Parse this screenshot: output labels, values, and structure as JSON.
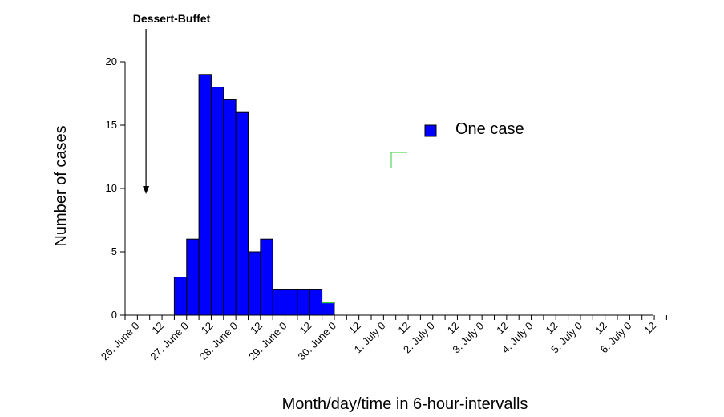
{
  "chart_data": {
    "type": "bar",
    "title": "",
    "xlabel": "Month/day/time in 6-hour-intervalls",
    "ylabel": "Number of cases",
    "ylim": [
      0,
      20
    ],
    "yticks": [
      0,
      5,
      10,
      15,
      20
    ],
    "grid": false,
    "legend": {
      "label": "One case",
      "position": "top-right"
    },
    "annotation": {
      "text": "Dessert-Buffet",
      "at_interval": 1.7
    },
    "bar_color": "#0000ff",
    "highlight_color": "#33cc33",
    "x_tick_labels": [
      "26. June 0",
      "12",
      "27. June 0",
      "12",
      "28. June 0",
      "12",
      "29. June 0",
      "12",
      "30. June 0",
      "12",
      "1. July 0",
      "12",
      "2. July 0",
      "12",
      "3. July 0",
      "12",
      "4. July 0",
      "12",
      "5. July 0",
      "12",
      "6. July 0",
      "12"
    ],
    "bars": [
      {
        "interval": 4,
        "value": 3
      },
      {
        "interval": 5,
        "value": 6
      },
      {
        "interval": 6,
        "value": 19
      },
      {
        "interval": 7,
        "value": 18
      },
      {
        "interval": 8,
        "value": 17
      },
      {
        "interval": 9,
        "value": 16
      },
      {
        "interval": 10,
        "value": 5
      },
      {
        "interval": 11,
        "value": 6
      },
      {
        "interval": 12,
        "value": 2
      },
      {
        "interval": 13,
        "value": 2
      },
      {
        "interval": 14,
        "value": 2
      },
      {
        "interval": 15,
        "value": 2
      },
      {
        "interval": 16,
        "value": 1,
        "highlight": true
      }
    ]
  }
}
